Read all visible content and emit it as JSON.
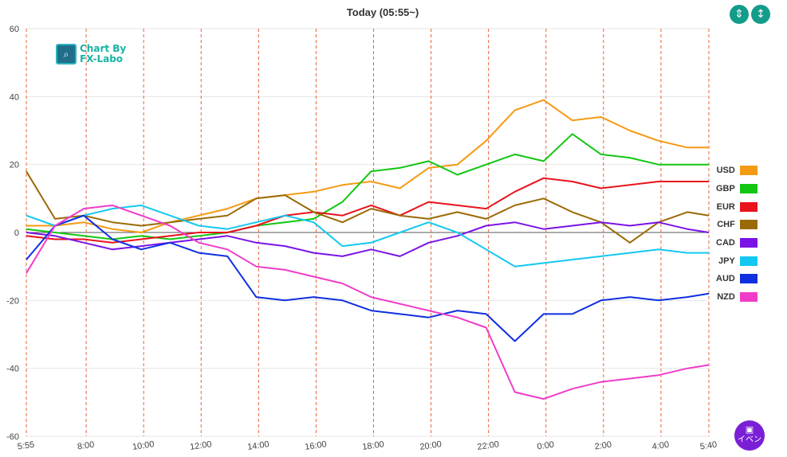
{
  "header": {
    "title": "Today  (05:55~)"
  },
  "controls": {
    "compress_icon": "compress-vertical-icon",
    "expand_icon": "expand-vertical-icon"
  },
  "logo": {
    "line1": "Chart By",
    "line2": "FX-Labo"
  },
  "event_button": {
    "icon": "calendar-icon",
    "label": "イベン"
  },
  "colors": {
    "USD": "#f59a13",
    "GBP": "#13c613",
    "EUR": "#e8131b",
    "CHF": "#9a6a06",
    "CAD": "#7a13e8",
    "JPY": "#13c8f0",
    "AUD": "#0f2fe0",
    "NZD": "#f03cc8"
  },
  "chart_data": {
    "type": "line",
    "title": "Today  (05:55~)",
    "xlabel": "",
    "ylabel": "",
    "ylim": [
      -60,
      60
    ],
    "yticks": [
      60,
      40,
      20,
      0,
      -20,
      -40,
      -60
    ],
    "x_start": "5:55",
    "x_end": "5:40",
    "x_tick_labels": [
      "5:55",
      "8:00",
      "10:00",
      "12:00",
      "14:00",
      "16:00",
      "18:00",
      "20:00",
      "22:00",
      "0:00",
      "2:00",
      "4:00",
      "5:40"
    ],
    "x_tick_hours": [
      0,
      2.083,
      4.083,
      6.083,
      8.083,
      10.083,
      12.083,
      14.083,
      16.083,
      18.083,
      20.083,
      22.083,
      23.75
    ],
    "vertical_gridlines": "dashed orange",
    "legend_position": "right",
    "x_hours": [
      0,
      1,
      2,
      3,
      4,
      5,
      6,
      7,
      8,
      9,
      10,
      11,
      12,
      13,
      14,
      15,
      16,
      17,
      18,
      19,
      20,
      21,
      22,
      23,
      23.75
    ],
    "series": [
      {
        "name": "USD",
        "values": [
          2,
          2,
          3,
          1,
          0,
          3,
          5,
          7,
          10,
          11,
          12,
          14,
          15,
          13,
          19,
          20,
          27,
          36,
          39,
          33,
          34,
          30,
          27,
          25,
          25
        ]
      },
      {
        "name": "GBP",
        "values": [
          1,
          0,
          -1,
          -2,
          -1,
          -2,
          -1,
          0,
          2,
          3,
          4,
          9,
          18,
          19,
          21,
          17,
          20,
          23,
          21,
          29,
          23,
          22,
          20,
          20,
          20
        ]
      },
      {
        "name": "EUR",
        "values": [
          -1,
          -2,
          -2,
          -3,
          -2,
          -1,
          0,
          0,
          2,
          5,
          6,
          5,
          8,
          5,
          9,
          8,
          7,
          12,
          16,
          15,
          13,
          14,
          15,
          15,
          15
        ]
      },
      {
        "name": "CHF",
        "values": [
          18,
          4,
          5,
          3,
          2,
          3,
          4,
          5,
          10,
          11,
          6,
          3,
          7,
          5,
          4,
          6,
          4,
          8,
          10,
          6,
          3,
          -3,
          3,
          6,
          5
        ]
      },
      {
        "name": "CAD",
        "values": [
          0,
          -1,
          -3,
          -5,
          -4,
          -3,
          -2,
          -1,
          -3,
          -4,
          -6,
          -7,
          -5,
          -7,
          -3,
          -1,
          2,
          3,
          1,
          2,
          3,
          2,
          3,
          1,
          0
        ]
      },
      {
        "name": "JPY",
        "values": [
          5,
          2,
          5,
          7,
          8,
          5,
          2,
          1,
          3,
          5,
          3,
          -4,
          -3,
          0,
          3,
          0,
          -5,
          -10,
          -9,
          -8,
          -7,
          -6,
          -5,
          -6,
          -6
        ]
      },
      {
        "name": "AUD",
        "values": [
          -8,
          2,
          5,
          -2,
          -5,
          -3,
          -6,
          -7,
          -19,
          -20,
          -19,
          -20,
          -23,
          -24,
          -25,
          -23,
          -24,
          -32,
          -24,
          -24,
          -20,
          -19,
          -20,
          -19,
          -18
        ]
      },
      {
        "name": "NZD",
        "values": [
          -12,
          2,
          7,
          8,
          5,
          2,
          -3,
          -5,
          -10,
          -11,
          -13,
          -15,
          -19,
          -21,
          -23,
          -25,
          -28,
          -47,
          -49,
          -46,
          -44,
          -43,
          -42,
          -40,
          -39
        ]
      }
    ]
  }
}
